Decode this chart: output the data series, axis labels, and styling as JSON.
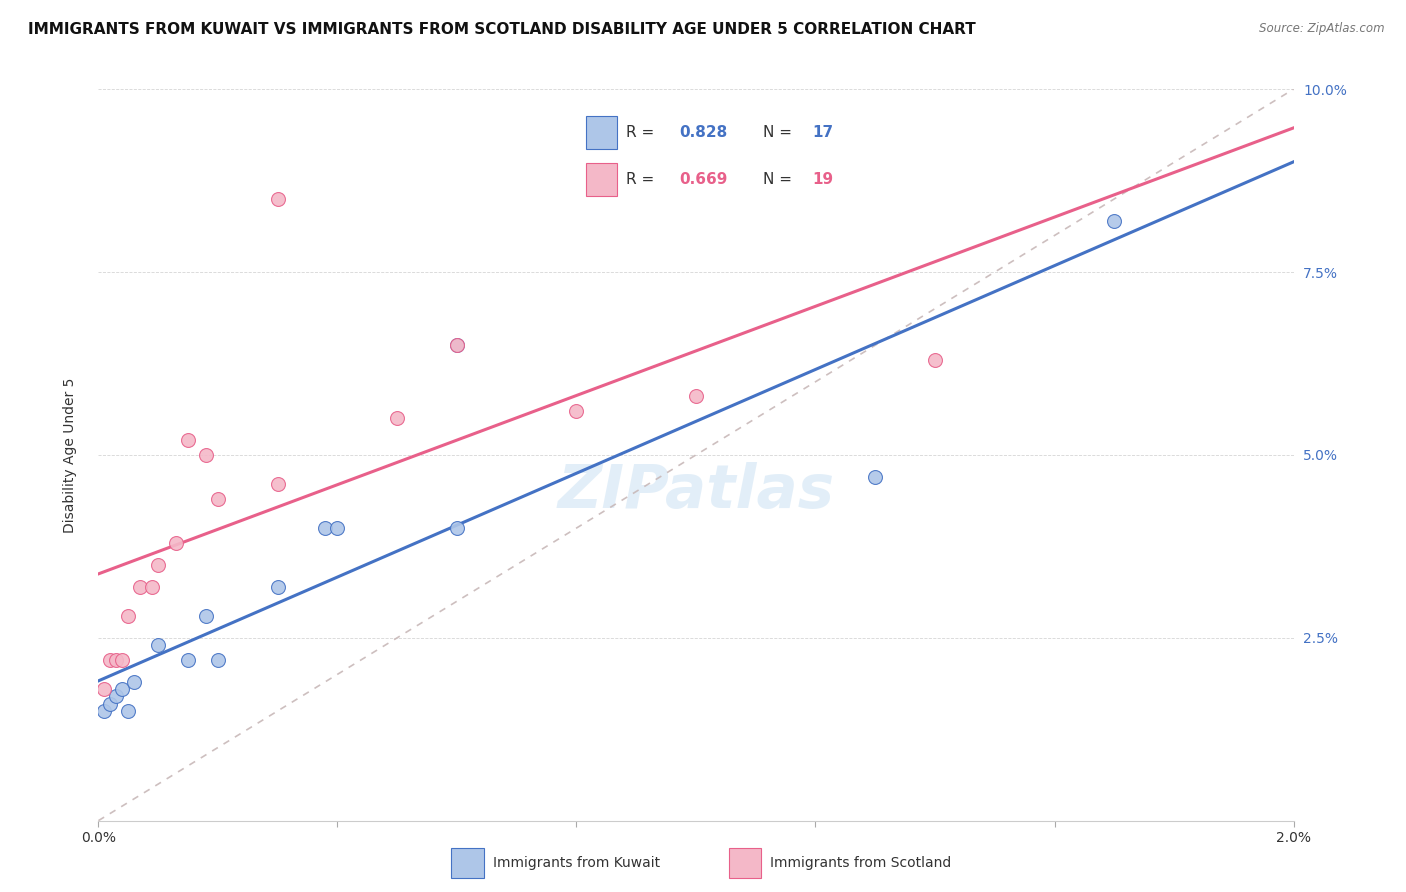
{
  "title": "IMMIGRANTS FROM KUWAIT VS IMMIGRANTS FROM SCOTLAND DISABILITY AGE UNDER 5 CORRELATION CHART",
  "source": "Source: ZipAtlas.com",
  "ylabel": "Disability Age Under 5",
  "xlabel_kuwait": "Immigrants from Kuwait",
  "xlabel_scotland": "Immigrants from Scotland",
  "R_kuwait": 0.828,
  "N_kuwait": 17,
  "R_scotland": 0.669,
  "N_scotland": 19,
  "color_kuwait": "#aec6e8",
  "color_scotland": "#f4b8c8",
  "line_color_kuwait": "#4472c4",
  "line_color_scotland": "#e8608a",
  "diagonal_color": "#c8b8b8",
  "xlim": [
    0.0,
    0.02
  ],
  "ylim": [
    0.0,
    0.1
  ],
  "xticks": [
    0.0,
    0.004,
    0.008,
    0.012,
    0.016,
    0.02
  ],
  "xticklabels": [
    "0.0%",
    "",
    "",
    "",
    "",
    "2.0%"
  ],
  "yticks": [
    0.0,
    0.025,
    0.05,
    0.075,
    0.1
  ],
  "yticklabels": [
    "",
    "2.5%",
    "5.0%",
    "7.5%",
    "10.0%"
  ],
  "kuwait_x": [
    0.0001,
    0.0002,
    0.0003,
    0.0004,
    0.0005,
    0.0006,
    0.001,
    0.0015,
    0.0018,
    0.002,
    0.003,
    0.0038,
    0.004,
    0.006,
    0.006,
    0.013,
    0.017
  ],
  "kuwait_y": [
    0.015,
    0.016,
    0.017,
    0.018,
    0.015,
    0.019,
    0.024,
    0.022,
    0.028,
    0.022,
    0.032,
    0.04,
    0.04,
    0.04,
    0.065,
    0.047,
    0.082
  ],
  "scotland_x": [
    0.0001,
    0.0002,
    0.0003,
    0.0004,
    0.0005,
    0.0007,
    0.0009,
    0.001,
    0.0013,
    0.0015,
    0.0018,
    0.002,
    0.003,
    0.003,
    0.005,
    0.006,
    0.008,
    0.01,
    0.014
  ],
  "scotland_y": [
    0.018,
    0.022,
    0.022,
    0.022,
    0.028,
    0.032,
    0.032,
    0.035,
    0.038,
    0.052,
    0.05,
    0.044,
    0.046,
    0.085,
    0.055,
    0.065,
    0.056,
    0.058,
    0.063
  ],
  "watermark_text": "ZIPatlas",
  "title_fontsize": 11,
  "axis_label_fontsize": 10,
  "tick_fontsize": 10,
  "marker_size": 100
}
